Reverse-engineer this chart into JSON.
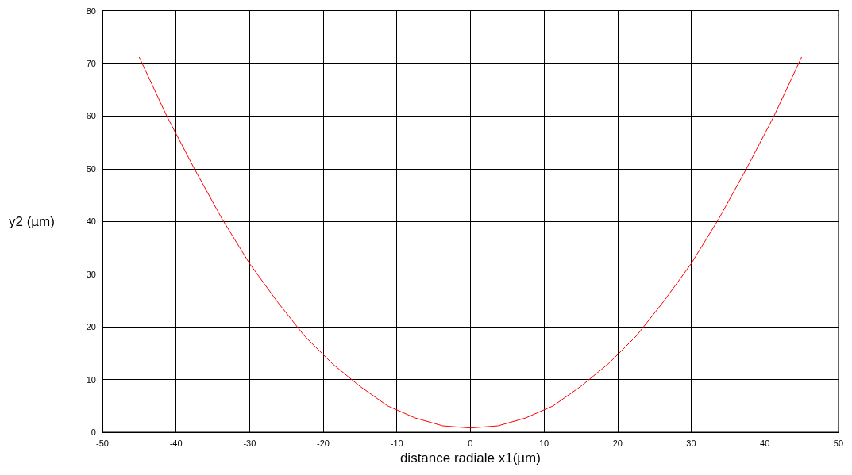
{
  "chart_data": {
    "type": "line",
    "xlabel": "distance radiale x1(µm)",
    "ylabel": "y2 (µm)",
    "x": [
      -45,
      -41.25,
      -37.5,
      -33.75,
      -30,
      -26.25,
      -22.5,
      -18.75,
      -15,
      -11.25,
      -7.5,
      -3.75,
      0,
      3.75,
      7.5,
      11.25,
      15,
      18.75,
      22.5,
      26.25,
      30,
      33.75,
      37.5,
      41.25,
      45
    ],
    "series": [
      {
        "color": "#ff0000",
        "values": [
          71.2,
          60,
          50,
          40.5,
          32,
          24.8,
          18.2,
          13,
          8.7,
          5,
          2.7,
          1.2,
          0.8,
          1.2,
          2.7,
          5,
          8.7,
          13,
          18.2,
          24.8,
          32,
          40.5,
          50,
          60,
          71.2
        ]
      }
    ],
    "xlim": [
      -50,
      50
    ],
    "xticks": [
      -50,
      -40,
      -30,
      -20,
      -10,
      0,
      10,
      20,
      30,
      40,
      50
    ],
    "ylim": [
      0,
      80
    ],
    "yticks": [
      0,
      10,
      20,
      30,
      40,
      50,
      60,
      70,
      80
    ],
    "grid": true,
    "marker": "none",
    "line_style": "solid"
  }
}
